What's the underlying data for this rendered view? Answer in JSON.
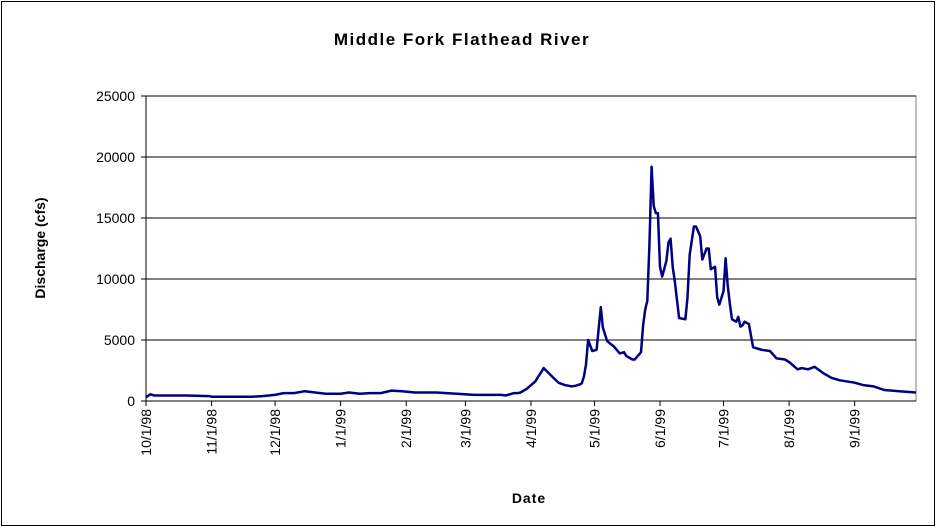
{
  "chart_data": {
    "type": "line",
    "title": "Middle Fork Flathead River",
    "xlabel": "Date",
    "ylabel": "Discharge (cfs)",
    "ylim": [
      0,
      25000
    ],
    "yticks": [
      0,
      5000,
      10000,
      15000,
      20000,
      25000
    ],
    "xlim": [
      "1998-10-01",
      "1999-09-30"
    ],
    "xticks": [
      "10/1/98",
      "11/1/98",
      "12/1/98",
      "1/1/99",
      "2/1/99",
      "3/1/99",
      "4/1/99",
      "5/1/99",
      "6/1/99",
      "7/1/99",
      "8/1/99",
      "9/1/99"
    ],
    "grid": "horizontal",
    "legend": "none",
    "line_color": "#000080",
    "series": [
      {
        "x": [
          "1998-10-01",
          "1998-10-03",
          "1998-10-05",
          "1998-10-10",
          "1998-10-20",
          "1998-10-31",
          "1998-11-01",
          "1998-11-10",
          "1998-11-20",
          "1998-11-25",
          "1998-11-28",
          "1998-12-01",
          "1998-12-05",
          "1998-12-10",
          "1998-12-15",
          "1998-12-20",
          "1998-12-25",
          "1998-12-28",
          "1999-01-01",
          "1999-01-05",
          "1999-01-10",
          "1999-01-15",
          "1999-01-20",
          "1999-01-25",
          "1999-01-30",
          "1999-02-05",
          "1999-02-15",
          "1999-02-25",
          "1999-03-05",
          "1999-03-15",
          "1999-03-18",
          "1999-03-20",
          "1999-03-22",
          "1999-03-24",
          "1999-03-26",
          "1999-03-27",
          "1999-03-30",
          "1999-04-03",
          "1999-04-07",
          "1999-04-11",
          "1999-04-14",
          "1999-04-17",
          "1999-04-19",
          "1999-04-20",
          "1999-04-22",
          "1999-04-24",
          "1999-04-25",
          "1999-04-26",
          "1999-04-27",
          "1999-04-28",
          "1999-04-30",
          "1999-05-02",
          "1999-05-04",
          "1999-05-05",
          "1999-05-07",
          "1999-05-10",
          "1999-05-13",
          "1999-05-15",
          "1999-05-16",
          "1999-05-18",
          "1999-05-19",
          "1999-05-20",
          "1999-05-21",
          "1999-05-23",
          "1999-05-24",
          "1999-05-25",
          "1999-05-26",
          "1999-05-27",
          "1999-05-28",
          "1999-05-29",
          "1999-05-30",
          "1999-05-31",
          "1999-06-01",
          "1999-06-02",
          "1999-06-04",
          "1999-06-05",
          "1999-06-06",
          "1999-06-07",
          "1999-06-08",
          "1999-06-10",
          "1999-06-13",
          "1999-06-14",
          "1999-06-15",
          "1999-06-17",
          "1999-06-18",
          "1999-06-20",
          "1999-06-21",
          "1999-06-23",
          "1999-06-24",
          "1999-06-25",
          "1999-06-27",
          "1999-06-28",
          "1999-06-29",
          "1999-07-01",
          "1999-07-02",
          "1999-07-03",
          "1999-07-04",
          "1999-07-05",
          "1999-07-07",
          "1999-07-08",
          "1999-07-09",
          "1999-07-10",
          "1999-07-11",
          "1999-07-13",
          "1999-07-15",
          "1999-07-17",
          "1999-07-19",
          "1999-07-23",
          "1999-07-26",
          "1999-07-30",
          "1999-08-01",
          "1999-08-03",
          "1999-08-05",
          "1999-08-07",
          "1999-08-10",
          "1999-08-13",
          "1999-08-17",
          "1999-08-21",
          "1999-08-25",
          "1999-09-01",
          "1999-09-05",
          "1999-09-10",
          "1999-09-15",
          "1999-09-22",
          "1999-09-30"
        ],
        "values": [
          300,
          550,
          450,
          450,
          450,
          400,
          350,
          350,
          350,
          400,
          450,
          500,
          650,
          650,
          800,
          700,
          600,
          600,
          600,
          700,
          600,
          650,
          650,
          850,
          800,
          700,
          700,
          600,
          500,
          500,
          500,
          450,
          550,
          650,
          650,
          700,
          1000,
          1600,
          2700,
          2000,
          1500,
          1300,
          1250,
          1200,
          1250,
          1350,
          1450,
          2000,
          3000,
          5000,
          4100,
          4200,
          7700,
          6000,
          4900,
          4500,
          3900,
          4000,
          3700,
          3500,
          3400,
          3400,
          3600,
          4000,
          6200,
          7500,
          8200,
          13000,
          19200,
          16000,
          15400,
          15400,
          11000,
          10200,
          11500,
          13000,
          13300,
          11000,
          9800,
          6800,
          6700,
          8500,
          12000,
          14300,
          14300,
          13500,
          11600,
          12500,
          12500,
          10800,
          11000,
          8500,
          7900,
          9000,
          11700,
          9500,
          8000,
          6700,
          6500,
          6900,
          6100,
          6200,
          6500,
          6300,
          4400,
          4300,
          4200,
          4100,
          3500,
          3400,
          3200,
          2900,
          2600,
          2700,
          2600,
          2800,
          2300,
          1900,
          1700,
          1500,
          1300,
          1200,
          900,
          800,
          700
        ]
      }
    ]
  }
}
